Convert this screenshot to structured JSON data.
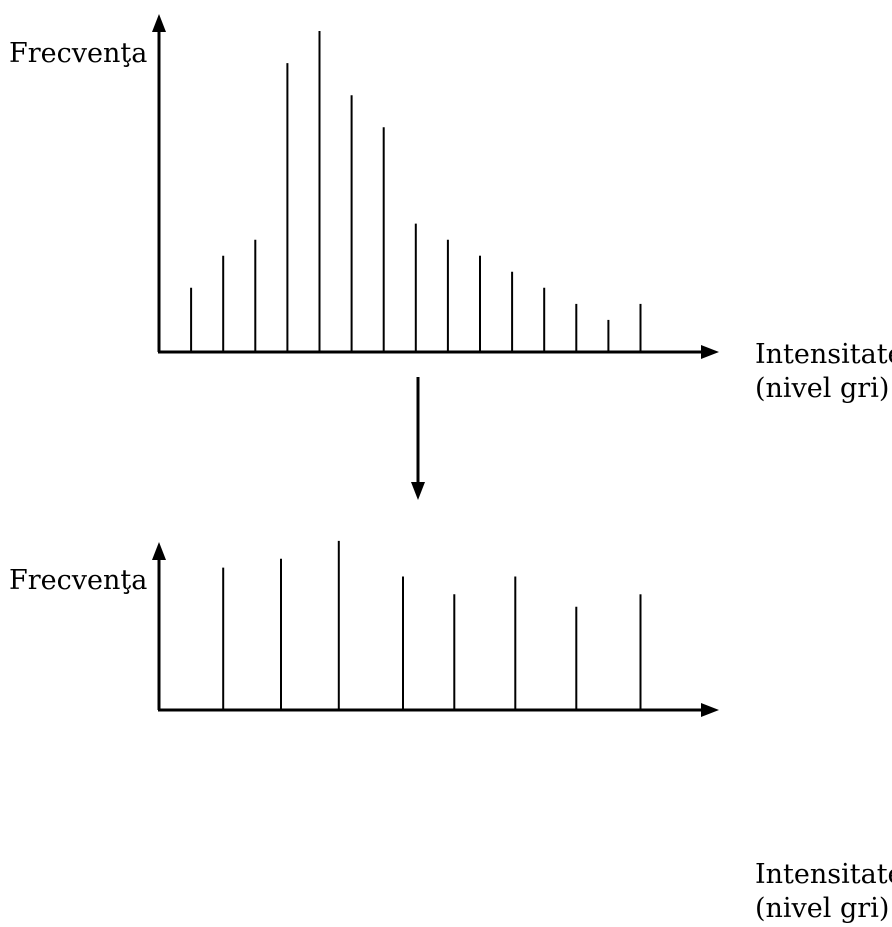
{
  "chart_data": [
    {
      "type": "bar",
      "style": "stem",
      "ylabel": "Frecvenţa",
      "xlabel_lines": [
        "Intensitate",
        "(nivel gri)"
      ],
      "x": [
        1,
        2,
        3,
        4,
        5,
        6,
        7,
        8,
        9,
        10,
        11,
        12,
        13,
        14,
        15
      ],
      "values": [
        20,
        30,
        35,
        90,
        100,
        80,
        70,
        40,
        35,
        30,
        25,
        20,
        15,
        10,
        15
      ],
      "ylim": [
        0,
        105
      ],
      "xlim": [
        0,
        17
      ],
      "grid": false
    },
    {
      "type": "bar",
      "style": "stem",
      "ylabel": "Frecvenţa",
      "xlabel_lines": [
        "Intensitate",
        "(nivel gri)"
      ],
      "x": [
        2,
        3.8,
        5.6,
        7.6,
        9.2,
        11.1,
        13,
        15
      ],
      "values": [
        80,
        85,
        95,
        75,
        65,
        75,
        58,
        65
      ],
      "ylim": [
        0,
        105
      ],
      "xlim": [
        0,
        17
      ],
      "grid": false
    }
  ]
}
